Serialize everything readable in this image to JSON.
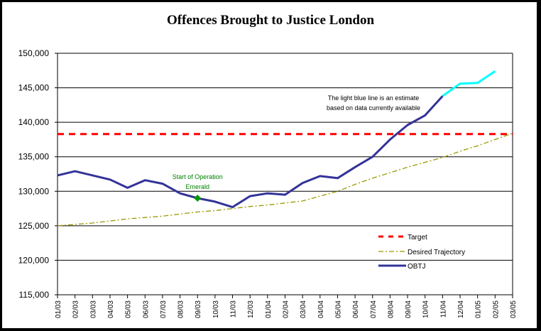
{
  "chart_data": {
    "type": "line",
    "title": "Offences Brought to Justice London",
    "xlabel": "",
    "ylabel": "",
    "ylim": [
      115000,
      150000
    ],
    "yticks": [
      "115,000",
      "120,000",
      "125,000",
      "130,000",
      "135,000",
      "140,000",
      "145,000",
      "150,000"
    ],
    "ytick_values": [
      115000,
      120000,
      125000,
      130000,
      135000,
      140000,
      145000,
      150000
    ],
    "grid": true,
    "legend_position": "bottom-right",
    "categories": [
      "01/03",
      "02/03",
      "03/03",
      "04/03",
      "05/03",
      "06/03",
      "07/03",
      "08/03",
      "09/03",
      "10/03",
      "11/03",
      "12/03",
      "01/04",
      "02/04",
      "03/04",
      "04/04",
      "05/04",
      "06/04",
      "07/04",
      "08/04",
      "09/04",
      "10/04",
      "11/04",
      "12/04",
      "01/05",
      "02/05",
      "03/05"
    ],
    "series": [
      {
        "name": "Target",
        "style": "dashed",
        "color": "#ff0000",
        "values": [
          138300,
          138300,
          138300,
          138300,
          138300,
          138300,
          138300,
          138300,
          138300,
          138300,
          138300,
          138300,
          138300,
          138300,
          138300,
          138300,
          138300,
          138300,
          138300,
          138300,
          138300,
          138300,
          138300,
          138300,
          138300,
          138300,
          138300
        ]
      },
      {
        "name": "Desired Trajectory",
        "style": "dash-dot",
        "color": "#999900",
        "values": [
          125000,
          125200,
          125400,
          125700,
          126000,
          126200,
          126400,
          126700,
          127000,
          127200,
          127500,
          127800,
          128000,
          128300,
          128600,
          129300,
          130000,
          131000,
          131900,
          132700,
          133500,
          134200,
          134900,
          135800,
          136600,
          137500,
          138400
        ]
      },
      {
        "name": "OBTJ",
        "style": "solid",
        "color": "#333399",
        "values": [
          132300,
          132900,
          132300,
          131700,
          130500,
          131600,
          131100,
          129700,
          129000,
          128500,
          127700,
          129300,
          129700,
          129500,
          131200,
          132200,
          131900,
          133500,
          135000,
          137500,
          139600,
          141000,
          143800,
          null,
          null,
          null,
          null
        ]
      },
      {
        "name": "OBTJ estimate",
        "style": "solid",
        "color": "#00ffff",
        "in_legend": false,
        "values": [
          null,
          null,
          null,
          null,
          null,
          null,
          null,
          null,
          null,
          null,
          null,
          null,
          null,
          null,
          null,
          null,
          null,
          null,
          null,
          null,
          null,
          null,
          143800,
          145600,
          145700,
          147400,
          null
        ]
      }
    ],
    "annotations": [
      {
        "text_lines": [
          "Start of Operation",
          "Emerald"
        ],
        "category": "09/03",
        "value": 129000,
        "marker": "diamond",
        "color": "#009900"
      },
      {
        "text_lines": [
          "The light blue line is an estimate",
          "based on data currently available"
        ],
        "color": "#000000"
      }
    ]
  }
}
